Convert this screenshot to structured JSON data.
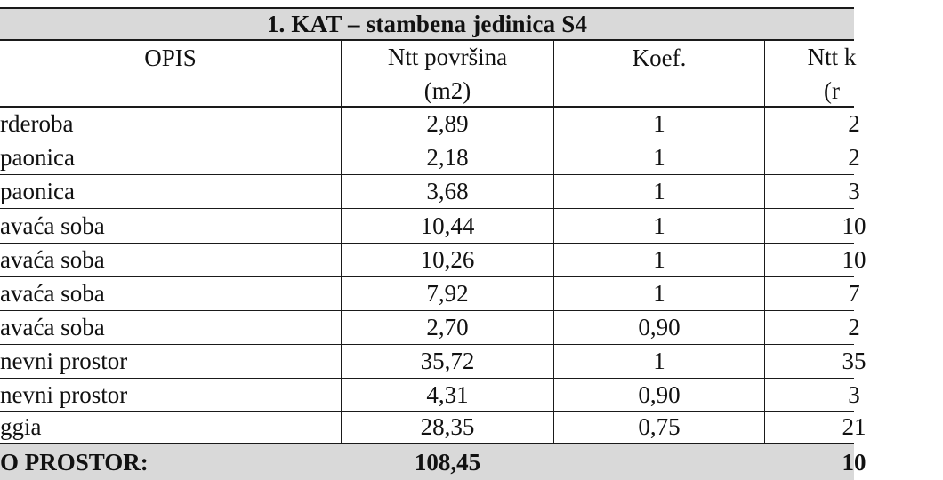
{
  "table": {
    "title": "1.   KAT – stambena jedinica S4",
    "headers": {
      "opis": "OPIS",
      "povrsina_line1": "Ntt površina",
      "povrsina_line2": "(m2)",
      "koef": "Koef.",
      "ntt_line1": "Ntt k",
      "ntt_line2": "(r"
    },
    "rows": [
      {
        "opis": "rderoba",
        "povrsina": "2,89",
        "koef": "1",
        "ntt": "2"
      },
      {
        "opis": "paonica",
        "povrsina": "2,18",
        "koef": "1",
        "ntt": "2"
      },
      {
        "opis": "paonica",
        "povrsina": "3,68",
        "koef": "1",
        "ntt": "3"
      },
      {
        "opis": "avaća soba",
        "povrsina": "10,44",
        "koef": "1",
        "ntt": "10"
      },
      {
        "opis": "avaća soba",
        "povrsina": "10,26",
        "koef": "1",
        "ntt": "10"
      },
      {
        "opis": "avaća soba",
        "povrsina": "7,92",
        "koef": "1",
        "ntt": "7"
      },
      {
        "opis": "avaća soba",
        "povrsina": "2,70",
        "koef": "0,90",
        "ntt": "2"
      },
      {
        "opis": "nevni prostor",
        "povrsina": "35,72",
        "koef": "1",
        "ntt": "35"
      },
      {
        "opis": "nevni prostor",
        "povrsina": "4,31",
        "koef": "0,90",
        "ntt": "3"
      },
      {
        "opis": "ggia",
        "povrsina": "28,35",
        "koef": "0,75",
        "ntt": "21"
      }
    ],
    "total": {
      "label": "O PROSTOR:",
      "povrsina": "108,45",
      "ntt": "10"
    }
  }
}
